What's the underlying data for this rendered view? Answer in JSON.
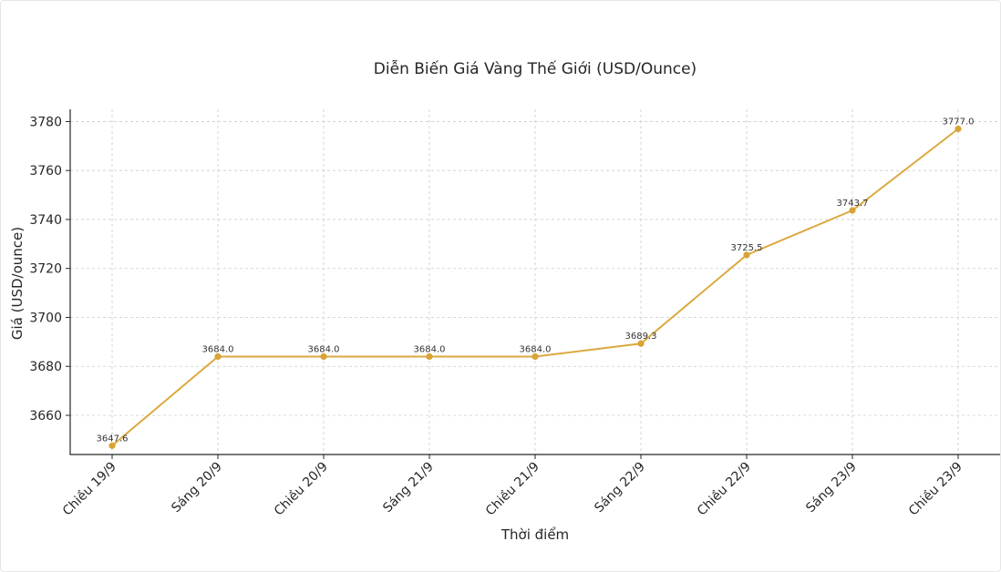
{
  "chart_data": {
    "type": "line",
    "title": "Diễn Biến Giá Vàng Thế Giới (USD/Ounce)",
    "xlabel": "Thời điểm",
    "ylabel": "Giá (USD/ounce)",
    "categories": [
      "Chiều 19/9",
      "Sáng 20/9",
      "Chiều 20/9",
      "Sáng 21/9",
      "Chiều 21/9",
      "Sáng 22/9",
      "Chiều 22/9",
      "Sáng 23/9",
      "Chiều 23/9"
    ],
    "values": [
      3647.6,
      3684.0,
      3684.0,
      3684.0,
      3684.0,
      3689.3,
      3725.5,
      3743.7,
      3777.0
    ],
    "data_labels": [
      "3647.6",
      "3684.0",
      "3684.0",
      "3684.0",
      "3684.0",
      "3689.3",
      "3725.5",
      "3743.7",
      "3777.0"
    ],
    "ylim": [
      3644,
      3785
    ],
    "yticks": [
      3660,
      3680,
      3700,
      3720,
      3740,
      3760,
      3780
    ],
    "ytick_labels": [
      "3660",
      "3680",
      "3700",
      "3720",
      "3740",
      "3760",
      "3780"
    ],
    "grid": true,
    "line_color": "#dba93f",
    "marker_color": "#d9a335"
  }
}
